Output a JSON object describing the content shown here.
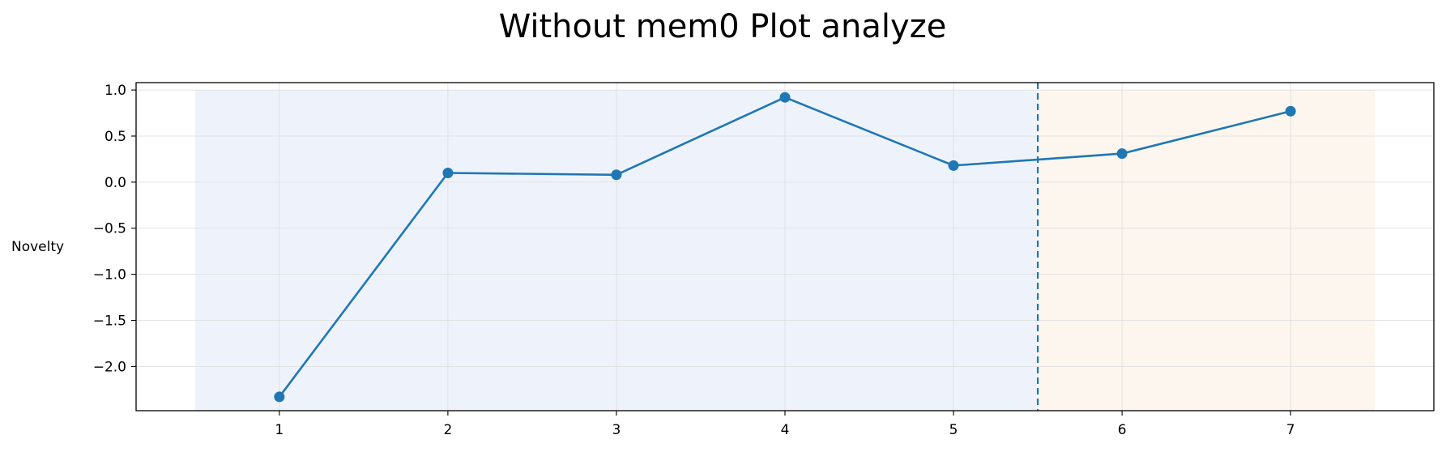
{
  "chart_data": {
    "type": "line",
    "title": "Without mem0 Plot analyze",
    "xlabel": "",
    "ylabel": "Novelty",
    "x": [
      1,
      2,
      3,
      4,
      5,
      6,
      7
    ],
    "series": [
      {
        "values": [
          -2.33,
          0.1,
          0.08,
          0.92,
          0.18,
          0.31,
          0.77
        ],
        "color": "#1f77b4",
        "marker": "circle"
      }
    ],
    "xlim": [
      0.15,
      7.85
    ],
    "ylim": [
      -2.48,
      1.08
    ],
    "xticks": [
      1,
      2,
      3,
      4,
      5,
      6,
      7
    ],
    "yticks": [
      1.0,
      0.5,
      0.0,
      -0.5,
      -1.0,
      -1.5,
      -2.0
    ],
    "ytick_labels": [
      "1.0",
      "0.5",
      "0.0",
      "−0.5",
      "−1.0",
      "−1.5",
      "−2.0"
    ],
    "shaded_regions": [
      {
        "x_from": 0.5,
        "x_to": 5.5,
        "color": "#eef3fb"
      },
      {
        "x_from": 5.5,
        "x_to": 7.5,
        "color": "#fdf6ee"
      }
    ],
    "vertical_line": {
      "x": 5.5,
      "style": "dashed",
      "color": "#1f77b4"
    },
    "grid": true,
    "legend": "none"
  }
}
